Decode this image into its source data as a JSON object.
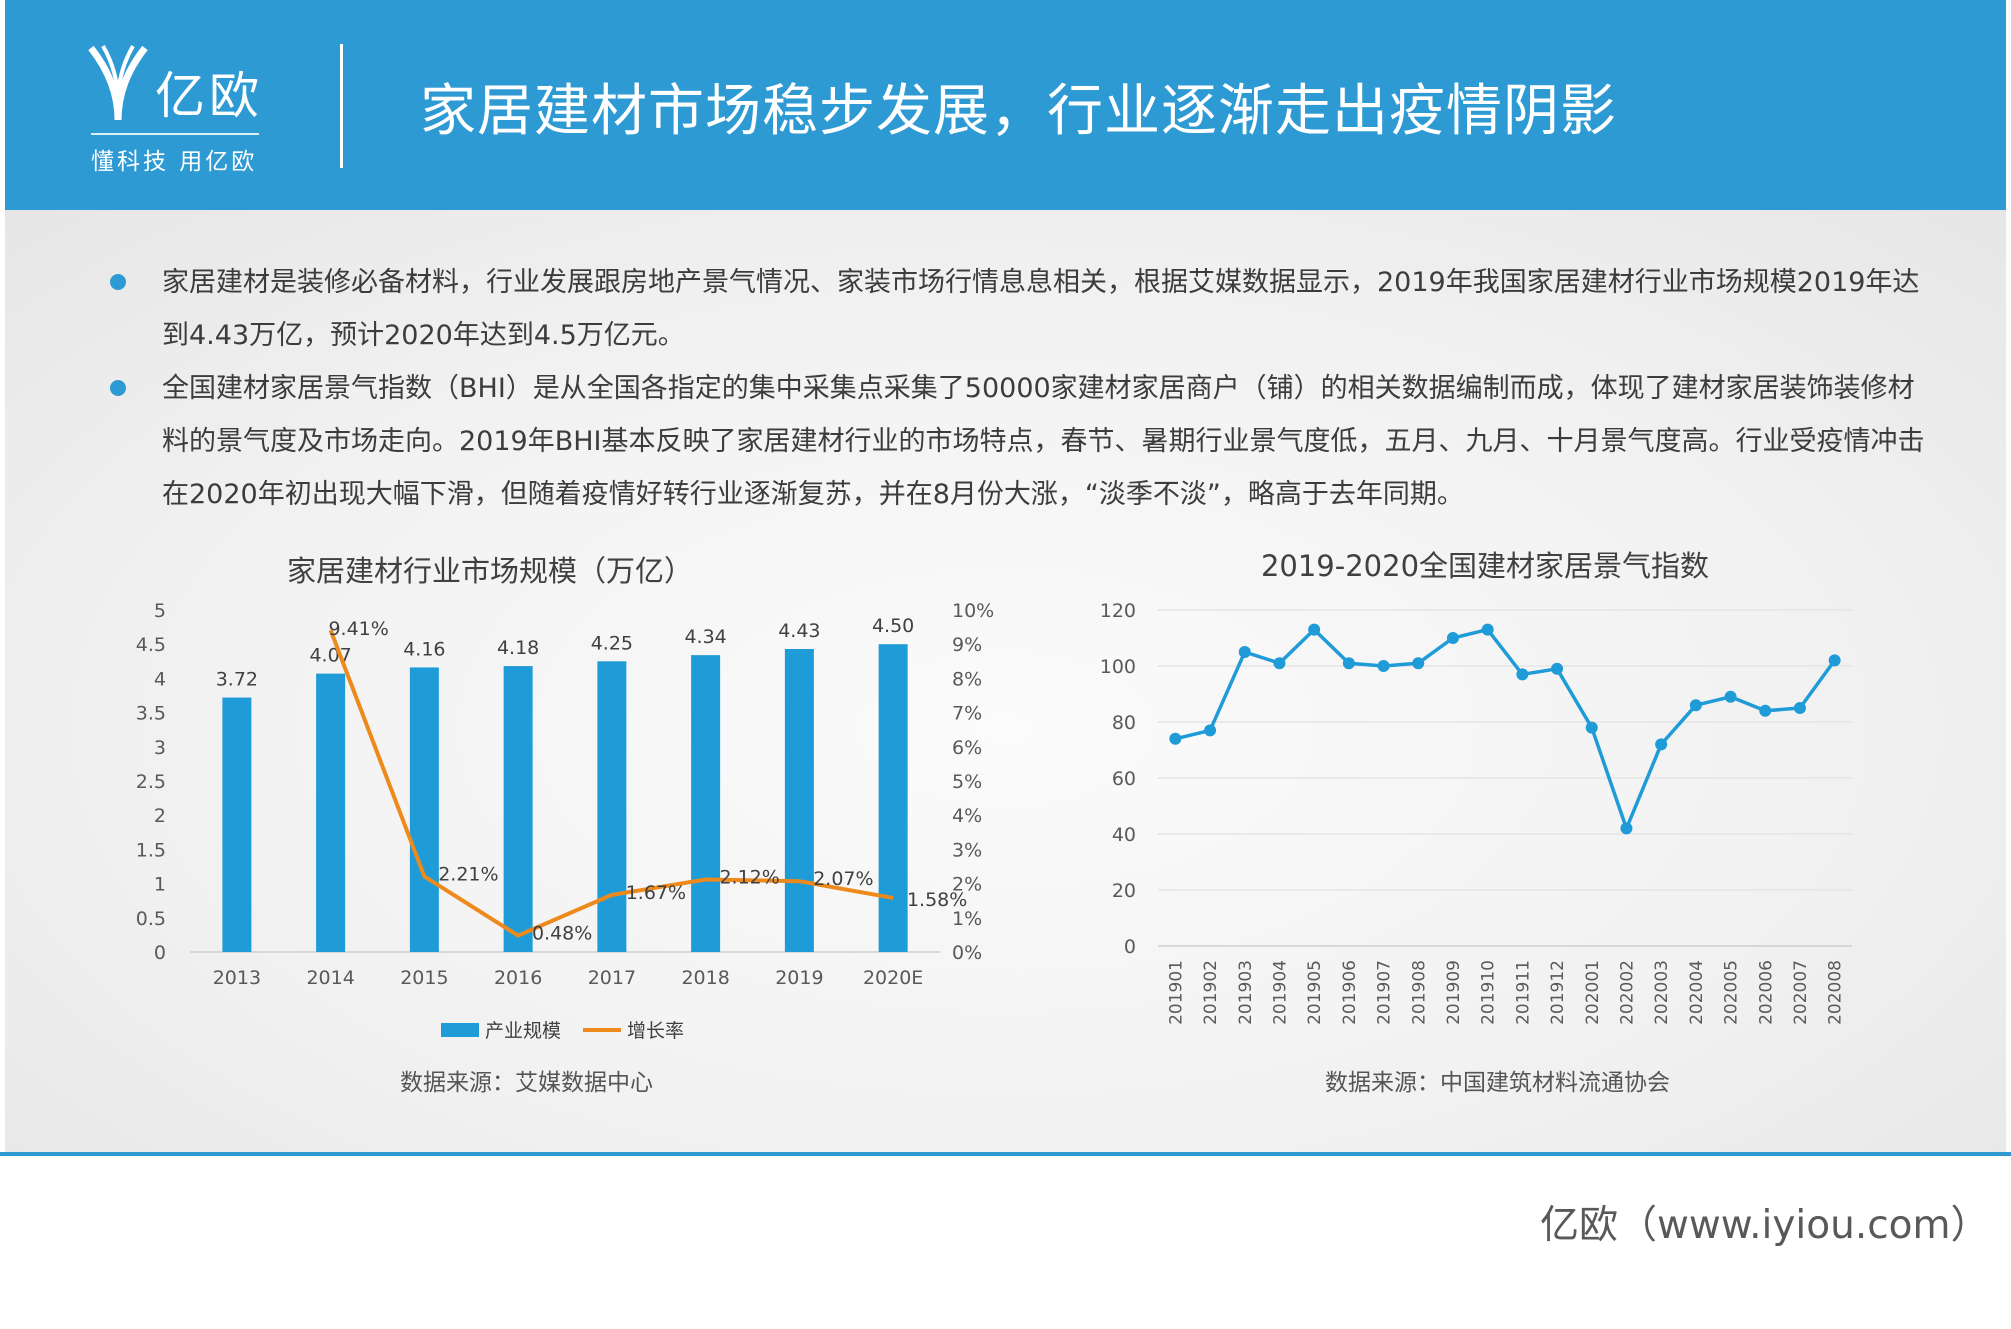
{
  "header": {
    "logo_text": "亿欧",
    "logo_slogan": "懂科技 用亿欧",
    "title": "家居建材市场稳步发展，行业逐渐走出疫情阴影"
  },
  "bullets": [
    "家居建材是装修必备材料，行业发展跟房地产景气情况、家装市场行情息息相关，根据艾媒数据显示，2019年我国家居建材行业市场规模2019年达到4.43万亿，预计2020年达到4.5万亿元。",
    "全国建材家居景气指数（BHI）是从全国各指定的集中采集点采集了50000家建材家居商户（铺）的相关数据编制而成，体现了建材家居装饰装修材料的景气度及市场走向。2019年BHI基本反映了家居建材行业的市场特点，春节、暑期行业景气度低，五月、九月、十月景气度高。行业受疫情冲击在2020年初出现大幅下滑，但随着疫情好转行业逐渐复苏，并在8月份大涨，“淡季不淡”，略高于去年同期。"
  ],
  "colors": {
    "accent": "#2E9AD3",
    "bar": "#1F9BD7",
    "line_orange": "#EE8A1C"
  },
  "footer": "亿欧（www.iyiou.com）",
  "chart_data": [
    {
      "type": "bar",
      "title": "家居建材行业市场规模（万亿）",
      "source": "数据来源：艾媒数据中心",
      "categories": [
        "2013",
        "2014",
        "2015",
        "2016",
        "2017",
        "2018",
        "2019",
        "2020E"
      ],
      "series": [
        {
          "name": "产业规模",
          "type": "bar",
          "axis": "left",
          "values": [
            3.72,
            4.07,
            4.16,
            4.18,
            4.25,
            4.34,
            4.43,
            4.5
          ],
          "labels": [
            "3.72",
            "4.07",
            "4.16",
            "4.18",
            "4.25",
            "4.34",
            "4.43",
            "4.50"
          ]
        },
        {
          "name": "增长率",
          "type": "line",
          "axis": "right",
          "values": [
            null,
            9.41,
            2.21,
            0.48,
            1.67,
            2.12,
            2.07,
            1.58
          ],
          "labels": [
            "",
            "9.41%",
            "2.21%",
            "0.48%",
            "1.67%",
            "2.12%",
            "2.07%",
            "1.58%"
          ]
        }
      ],
      "ylim": [
        0,
        5
      ],
      "yticks": [
        "0",
        "0.5",
        "1",
        "1.5",
        "2",
        "2.5",
        "3",
        "3.5",
        "4",
        "4.5",
        "5"
      ],
      "y2lim": [
        0,
        10
      ],
      "y2ticks": [
        "0%",
        "1%",
        "2%",
        "3%",
        "4%",
        "5%",
        "6%",
        "7%",
        "8%",
        "9%",
        "10%"
      ],
      "legend": "bottom",
      "grid": false
    },
    {
      "type": "line",
      "title": "2019-2020全国建材家居景气指数",
      "source": "数据来源：中国建筑材料流通协会",
      "x": [
        "201901",
        "201902",
        "201903",
        "201904",
        "201905",
        "201906",
        "201907",
        "201908",
        "201909",
        "201910",
        "201911",
        "201912",
        "202001",
        "202002",
        "202003",
        "202004",
        "202005",
        "202006",
        "202007",
        "202008"
      ],
      "values": [
        74,
        77,
        105,
        101,
        113,
        101,
        100,
        101,
        110,
        113,
        97,
        99,
        78,
        42,
        72,
        86,
        89,
        84,
        85,
        102
      ],
      "ylim": [
        0,
        120
      ],
      "yticks": [
        "0",
        "20",
        "40",
        "60",
        "80",
        "100",
        "120"
      ],
      "grid": true,
      "legend": "none"
    }
  ]
}
